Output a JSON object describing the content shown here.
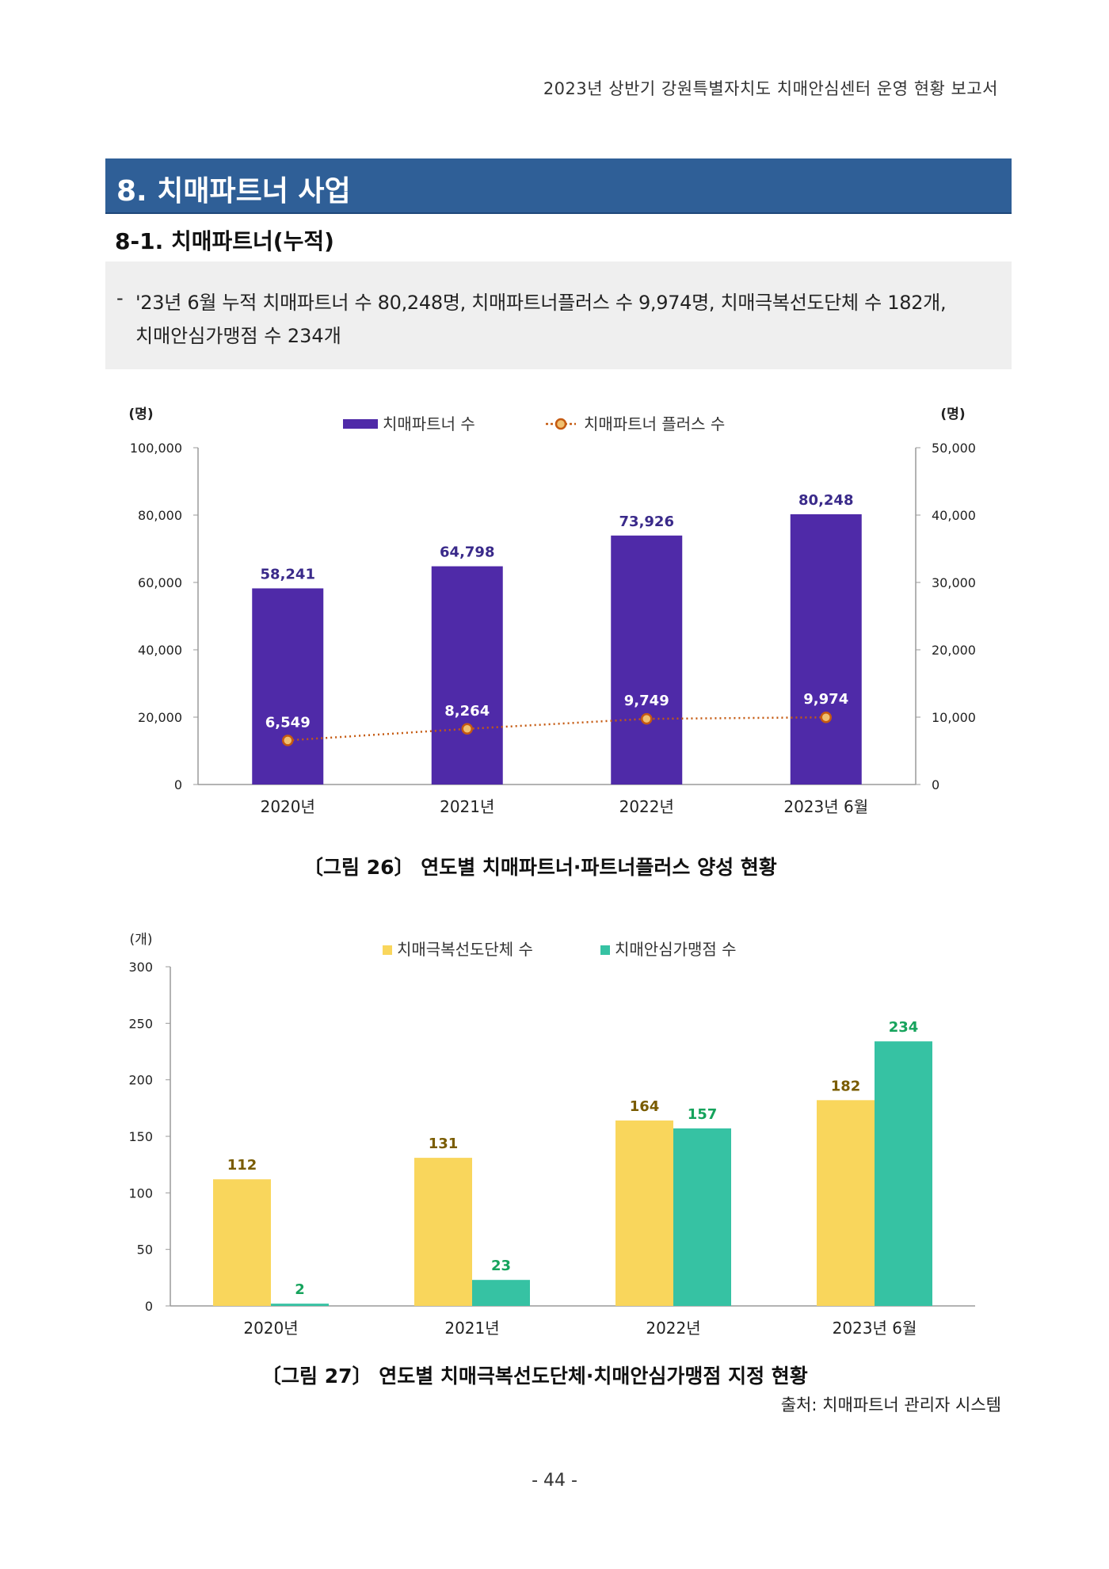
{
  "header": {
    "title": "2023년 상반기 강원특별자치도 치매안심센터 운영 현황 보고서"
  },
  "section": {
    "title": "8. 치매파트너 사업",
    "subtitle": "8-1. 치매파트너(누적)"
  },
  "summary": {
    "dash": "-",
    "line1": "'23년 6월 누적 치매파트너 수 80,248명, 치매파트너플러스 수 9,974명, 치매극복선도단체 수 182개,",
    "line2": "치매안심가맹점 수 234개"
  },
  "chart_data": [
    {
      "type": "bar",
      "categories": [
        "2020년",
        "2021년",
        "2022년",
        "2023년 6월"
      ],
      "left_axis_unit": "(명)",
      "right_axis_unit": "(명)",
      "ylim": [
        0,
        100000
      ],
      "y2lim": [
        0,
        50000
      ],
      "yticks": [
        "0",
        "20,000",
        "40,000",
        "60,000",
        "80,000",
        "100,000"
      ],
      "y2ticks": [
        "0",
        "10,000",
        "20,000",
        "30,000",
        "40,000",
        "50,000"
      ],
      "series": [
        {
          "name": "치매파트너 수",
          "type": "bar",
          "axis": "left",
          "color": "#4f2aa8",
          "values": [
            58241,
            64798,
            73926,
            80248
          ],
          "labels": [
            "58,241",
            "64,798",
            "73,926",
            "80,248"
          ]
        },
        {
          "name": "치매파트너 플러스 수",
          "type": "line",
          "axis": "right",
          "color": "#c55a11",
          "values": [
            6549,
            8264,
            9749,
            9974
          ],
          "labels": [
            "6,549",
            "8,264",
            "9,749",
            "9,974"
          ]
        }
      ],
      "legend": "top-center",
      "caption": "〔그림 26〕 연도별 치매파트너·파트너플러스 양성 현황"
    },
    {
      "type": "bar",
      "categories": [
        "2020년",
        "2021년",
        "2022년",
        "2023년 6월"
      ],
      "axis_unit": "(개)",
      "ylim": [
        0,
        300
      ],
      "yticks": [
        "0",
        "50",
        "100",
        "150",
        "200",
        "250",
        "300"
      ],
      "series": [
        {
          "name": "치매극복선도단체 수",
          "color": "#f9d65c",
          "label_color": "#7a5c00",
          "values": [
            112,
            131,
            164,
            182
          ],
          "labels": [
            "112",
            "131",
            "164",
            "182"
          ]
        },
        {
          "name": "치매안심가맹점 수",
          "color": "#36c2a3",
          "label_color": "#16a35c",
          "values": [
            2,
            23,
            157,
            234
          ],
          "labels": [
            "2",
            "23",
            "157",
            "234"
          ]
        }
      ],
      "legend": "top-center",
      "caption": "〔그림 27〕 연도별 치매극복선도단체·치매안심가맹점 지정 현황"
    }
  ],
  "source": "출처: 치매파트너 관리자 시스템",
  "page_number": "- 44 -"
}
